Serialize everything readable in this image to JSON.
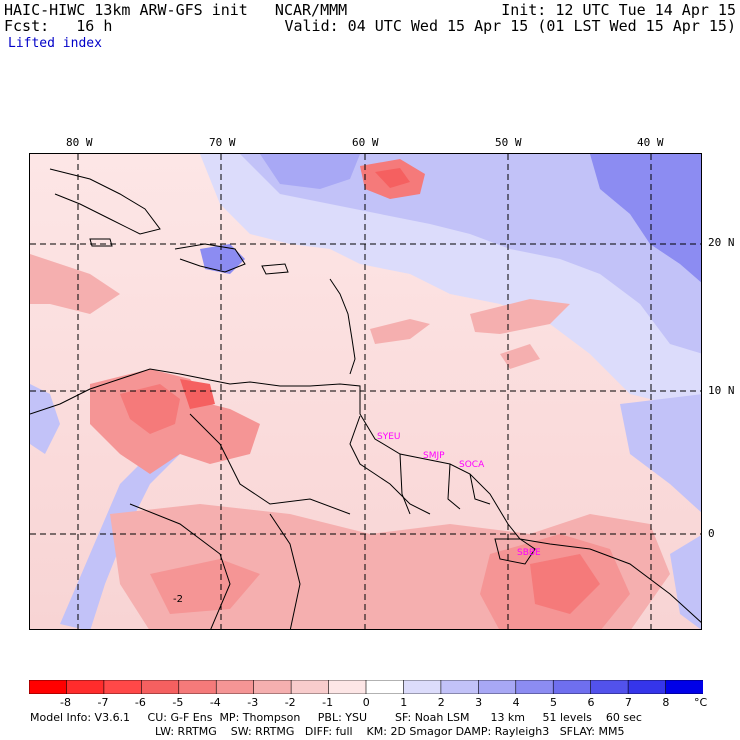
{
  "header": {
    "model": "HAIC-HIWC 13km ARW-GFS init   NCAR/MMM",
    "init": "Init: 12 UTC Tue 14 Apr 15",
    "fcst": "Fcst:   16 h",
    "valid": "Valid: 04 UTC Wed 15 Apr 15 (01 LST Wed 15 Apr 15)",
    "field": "Lifted index"
  },
  "map": {
    "lon_labels": [
      "80 W",
      "70 W",
      "60 W",
      "50 W",
      "40 W"
    ],
    "lat_labels": [
      "20 N",
      "10 N",
      "0"
    ],
    "stations": [
      "SYEU",
      "SMJP",
      "SOCA",
      "SBBE"
    ],
    "contour_label": "-2"
  },
  "colorbar": {
    "labels": [
      "-8",
      "-7",
      "-6",
      "-5",
      "-4",
      "-3",
      "-2",
      "-1",
      "0",
      "1",
      "2",
      "3",
      "4",
      "5",
      "6",
      "7",
      "8"
    ],
    "unit": "°C",
    "colors": [
      "#ff0000",
      "#ff2c2c",
      "#ff4848",
      "#f56060",
      "#f57a7a",
      "#f59595",
      "#f5afaf",
      "#f8cccc",
      "#fde6e6",
      "#ffffff",
      "#dcdcfb",
      "#c2c2f8",
      "#a8a8f5",
      "#8c8cf2",
      "#6f6fef",
      "#5252ec",
      "#3535ea",
      "#0000e8"
    ]
  },
  "info": {
    "line1": "Model Info: V3.6.1     CU: G-F Ens  MP: Thompson     PBL: YSU        SF: Noah LSM      13 km     51 levels    60 sec",
    "line2": "LW: RRTMG    SW: RRTMG   DIFF: full    KM: 2D Smagor DAMP: Rayleigh3   SFLAY: MM5"
  }
}
